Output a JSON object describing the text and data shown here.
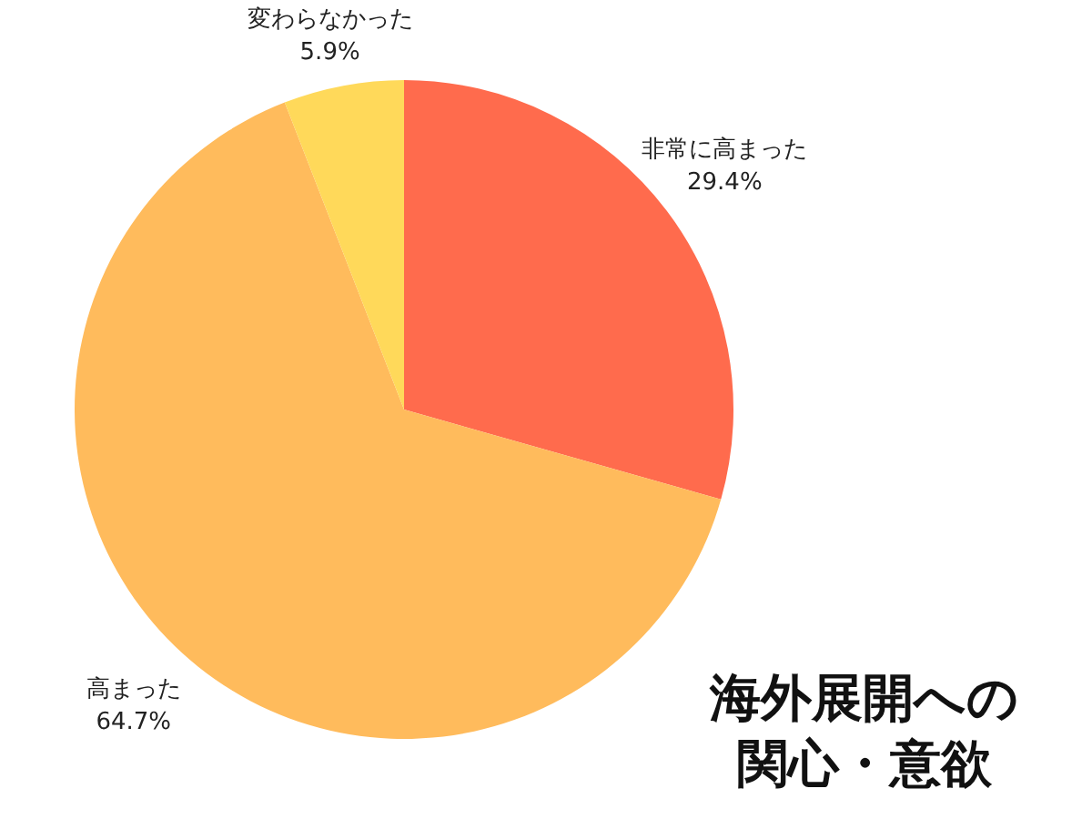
{
  "chart_data": {
    "type": "pie",
    "title": "海外展開への関心・意欲",
    "categories": [
      "非常に高まった",
      "高まった",
      "変わらなかった"
    ],
    "values": [
      29.4,
      64.7,
      5.9
    ],
    "value_labels": [
      "29.4%",
      "64.7%",
      "5.9%"
    ],
    "colors": [
      "#ff6b4d",
      "#ffbb5c",
      "#ffd95a"
    ]
  }
}
